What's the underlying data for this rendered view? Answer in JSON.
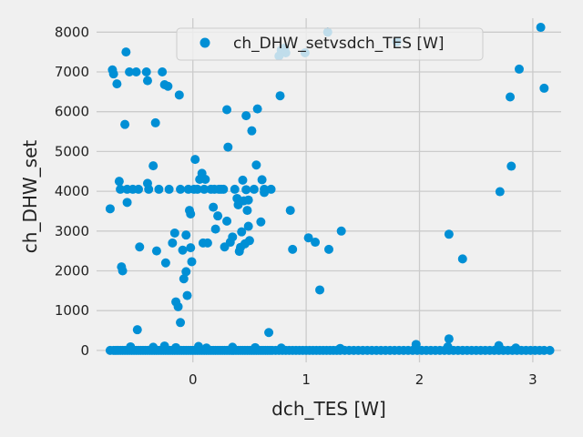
{
  "chart_data": {
    "type": "scatter",
    "title": "",
    "xlabel": "dch_TES [W]",
    "ylabel": "ch_DHW_set",
    "xlim": [
      -0.85,
      3.25
    ],
    "ylim": [
      -300,
      8350
    ],
    "xticks": [
      0,
      1,
      2,
      3
    ],
    "yticks": [
      0,
      1000,
      2000,
      3000,
      4000,
      5000,
      6000,
      7000,
      8000
    ],
    "grid": true,
    "legend_position": "top-center",
    "colors": {
      "series": "#008fd5",
      "background": "#f0f0f0",
      "grid": "#cbcbcb",
      "text": "#222222"
    },
    "series": [
      {
        "name": "ch_DHW_setvsdch_TES [W]",
        "points": [
          [
            -0.73,
            3560
          ],
          [
            -0.71,
            7050
          ],
          [
            -0.7,
            6950
          ],
          [
            -0.67,
            6700
          ],
          [
            -0.65,
            4250
          ],
          [
            -0.64,
            4050
          ],
          [
            -0.63,
            2100
          ],
          [
            -0.62,
            2000
          ],
          [
            -0.6,
            5680
          ],
          [
            -0.59,
            7500
          ],
          [
            -0.58,
            3720
          ],
          [
            -0.58,
            4050
          ],
          [
            -0.56,
            7000
          ],
          [
            -0.53,
            4050
          ],
          [
            -0.5,
            7000
          ],
          [
            -0.48,
            4050
          ],
          [
            -0.49,
            520
          ],
          [
            -0.47,
            2600
          ],
          [
            -0.41,
            7000
          ],
          [
            -0.4,
            4200
          ],
          [
            -0.4,
            6780
          ],
          [
            -0.39,
            4050
          ],
          [
            -0.35,
            4640
          ],
          [
            -0.33,
            5720
          ],
          [
            -0.32,
            2500
          ],
          [
            -0.3,
            4050
          ],
          [
            -0.27,
            7000
          ],
          [
            -0.25,
            6680
          ],
          [
            -0.24,
            2200
          ],
          [
            -0.22,
            6640
          ],
          [
            -0.21,
            4050
          ],
          [
            -0.18,
            2700
          ],
          [
            -0.16,
            2950
          ],
          [
            -0.15,
            1220
          ],
          [
            -0.13,
            1100
          ],
          [
            -0.12,
            6420
          ],
          [
            -0.11,
            4050
          ],
          [
            -0.11,
            700
          ],
          [
            -0.09,
            2520
          ],
          [
            -0.08,
            1800
          ],
          [
            -0.06,
            2900
          ],
          [
            -0.06,
            1980
          ],
          [
            -0.05,
            1380
          ],
          [
            -0.04,
            4050
          ],
          [
            -0.03,
            3520
          ],
          [
            -0.02,
            3430
          ],
          [
            -0.02,
            2580
          ],
          [
            -0.01,
            2230
          ],
          [
            0.01,
            4050
          ],
          [
            0.02,
            4800
          ],
          [
            0.04,
            4050
          ],
          [
            0.06,
            4300
          ],
          [
            0.08,
            4450
          ],
          [
            0.1,
            4050
          ],
          [
            0.09,
            2700
          ],
          [
            0.11,
            4300
          ],
          [
            0.13,
            2700
          ],
          [
            0.16,
            4050
          ],
          [
            0.18,
            3600
          ],
          [
            0.19,
            4050
          ],
          [
            0.2,
            3050
          ],
          [
            0.22,
            3380
          ],
          [
            0.23,
            4050
          ],
          [
            0.25,
            4050
          ],
          [
            0.27,
            4050
          ],
          [
            0.28,
            2600
          ],
          [
            0.3,
            3250
          ],
          [
            0.3,
            6050
          ],
          [
            0.31,
            5110
          ],
          [
            0.33,
            2720
          ],
          [
            0.35,
            2850
          ],
          [
            0.37,
            4050
          ],
          [
            0.39,
            3820
          ],
          [
            0.4,
            3660
          ],
          [
            0.41,
            2490
          ],
          [
            0.42,
            2590
          ],
          [
            0.43,
            2980
          ],
          [
            0.44,
            4280
          ],
          [
            0.45,
            3760
          ],
          [
            0.46,
            2680
          ],
          [
            0.48,
            3520
          ],
          [
            0.47,
            4040
          ],
          [
            0.47,
            5900
          ],
          [
            0.49,
            3780
          ],
          [
            0.49,
            3120
          ],
          [
            0.5,
            2760
          ],
          [
            0.52,
            5520
          ],
          [
            0.54,
            4050
          ],
          [
            0.56,
            4660
          ],
          [
            0.57,
            6070
          ],
          [
            0.6,
            3230
          ],
          [
            0.61,
            4290
          ],
          [
            0.63,
            3970
          ],
          [
            0.63,
            4050
          ],
          [
            0.67,
            450
          ],
          [
            0.69,
            4050
          ],
          [
            0.76,
            7400
          ],
          [
            0.77,
            6400
          ],
          [
            0.78,
            7550
          ],
          [
            0.81,
            7600
          ],
          [
            0.82,
            7480
          ],
          [
            0.86,
            3520
          ],
          [
            0.88,
            2540
          ],
          [
            0.99,
            7480
          ],
          [
            1.02,
            2830
          ],
          [
            1.08,
            2720
          ],
          [
            1.12,
            1520
          ],
          [
            1.19,
            8000
          ],
          [
            1.2,
            2540
          ],
          [
            1.31,
            3000
          ],
          [
            1.8,
            7760
          ],
          [
            2.26,
            2920
          ],
          [
            2.26,
            290
          ],
          [
            2.38,
            2300
          ],
          [
            2.71,
            3990
          ],
          [
            2.8,
            6370
          ],
          [
            2.81,
            4630
          ],
          [
            2.88,
            7070
          ],
          [
            3.07,
            8120
          ],
          [
            3.1,
            6590
          ],
          [
            -0.73,
            0
          ],
          [
            -0.7,
            0
          ],
          [
            -0.68,
            0
          ],
          [
            -0.66,
            0
          ],
          [
            -0.64,
            0
          ],
          [
            -0.62,
            0
          ],
          [
            -0.6,
            0
          ],
          [
            -0.58,
            0
          ],
          [
            -0.56,
            0
          ],
          [
            -0.54,
            0
          ],
          [
            -0.52,
            0
          ],
          [
            -0.5,
            0
          ],
          [
            -0.48,
            0
          ],
          [
            -0.46,
            0
          ],
          [
            -0.44,
            0
          ],
          [
            -0.42,
            0
          ],
          [
            -0.4,
            0
          ],
          [
            -0.38,
            0
          ],
          [
            -0.36,
            0
          ],
          [
            -0.34,
            0
          ],
          [
            -0.32,
            0
          ],
          [
            -0.3,
            0
          ],
          [
            -0.28,
            0
          ],
          [
            -0.26,
            0
          ],
          [
            -0.24,
            0
          ],
          [
            -0.22,
            0
          ],
          [
            -0.2,
            0
          ],
          [
            -0.18,
            0
          ],
          [
            -0.16,
            0
          ],
          [
            -0.14,
            0
          ],
          [
            -0.12,
            0
          ],
          [
            -0.1,
            0
          ],
          [
            -0.08,
            0
          ],
          [
            -0.06,
            0
          ],
          [
            -0.04,
            0
          ],
          [
            -0.02,
            0
          ],
          [
            0.0,
            0
          ],
          [
            0.02,
            0
          ],
          [
            0.04,
            0
          ],
          [
            0.06,
            0
          ],
          [
            0.08,
            0
          ],
          [
            0.1,
            0
          ],
          [
            0.12,
            0
          ],
          [
            0.14,
            0
          ],
          [
            0.16,
            0
          ],
          [
            0.18,
            0
          ],
          [
            0.2,
            0
          ],
          [
            0.22,
            0
          ],
          [
            0.24,
            0
          ],
          [
            0.26,
            0
          ],
          [
            0.28,
            0
          ],
          [
            0.3,
            0
          ],
          [
            0.32,
            0
          ],
          [
            0.34,
            0
          ],
          [
            0.36,
            0
          ],
          [
            0.38,
            0
          ],
          [
            0.4,
            0
          ],
          [
            0.42,
            0
          ],
          [
            0.44,
            0
          ],
          [
            0.46,
            0
          ],
          [
            0.48,
            0
          ],
          [
            0.5,
            0
          ],
          [
            0.52,
            0
          ],
          [
            0.54,
            0
          ],
          [
            0.56,
            0
          ],
          [
            0.58,
            0
          ],
          [
            0.6,
            0
          ],
          [
            0.62,
            0
          ],
          [
            0.64,
            0
          ],
          [
            0.66,
            0
          ],
          [
            0.68,
            0
          ],
          [
            0.7,
            0
          ],
          [
            0.73,
            0
          ],
          [
            0.76,
            0
          ],
          [
            0.79,
            0
          ],
          [
            0.82,
            0
          ],
          [
            0.85,
            0
          ],
          [
            0.88,
            0
          ],
          [
            0.91,
            0
          ],
          [
            0.94,
            0
          ],
          [
            0.97,
            0
          ],
          [
            1.0,
            0
          ],
          [
            1.03,
            0
          ],
          [
            1.06,
            0
          ],
          [
            1.09,
            0
          ],
          [
            1.12,
            0
          ],
          [
            1.15,
            0
          ],
          [
            1.18,
            0
          ],
          [
            1.21,
            0
          ],
          [
            1.24,
            0
          ],
          [
            1.27,
            0
          ],
          [
            1.3,
            0
          ],
          [
            1.34,
            0
          ],
          [
            1.38,
            0
          ],
          [
            1.42,
            0
          ],
          [
            1.46,
            0
          ],
          [
            1.5,
            0
          ],
          [
            1.54,
            0
          ],
          [
            1.58,
            0
          ],
          [
            1.62,
            0
          ],
          [
            1.66,
            0
          ],
          [
            1.7,
            0
          ],
          [
            1.74,
            0
          ],
          [
            1.78,
            0
          ],
          [
            1.82,
            0
          ],
          [
            1.86,
            0
          ],
          [
            1.9,
            0
          ],
          [
            1.94,
            0
          ],
          [
            1.98,
            0
          ],
          [
            2.02,
            0
          ],
          [
            2.06,
            0
          ],
          [
            2.1,
            0
          ],
          [
            2.14,
            0
          ],
          [
            2.18,
            0
          ],
          [
            2.22,
            0
          ],
          [
            2.26,
            0
          ],
          [
            2.3,
            0
          ],
          [
            2.34,
            0
          ],
          [
            2.38,
            0
          ],
          [
            2.42,
            0
          ],
          [
            2.46,
            0
          ],
          [
            2.5,
            0
          ],
          [
            2.54,
            0
          ],
          [
            2.58,
            0
          ],
          [
            2.62,
            0
          ],
          [
            2.66,
            0
          ],
          [
            2.7,
            0
          ],
          [
            2.74,
            0
          ],
          [
            2.78,
            0
          ],
          [
            2.82,
            0
          ],
          [
            2.86,
            0
          ],
          [
            2.9,
            0
          ],
          [
            2.94,
            0
          ],
          [
            2.98,
            0
          ],
          [
            3.02,
            0
          ],
          [
            3.06,
            0
          ],
          [
            3.1,
            0
          ],
          [
            3.15,
            0
          ],
          [
            -0.55,
            90
          ],
          [
            -0.35,
            80
          ],
          [
            -0.25,
            110
          ],
          [
            -0.15,
            70
          ],
          [
            0.05,
            100
          ],
          [
            0.12,
            60
          ],
          [
            0.35,
            80
          ],
          [
            0.55,
            70
          ],
          [
            0.78,
            60
          ],
          [
            1.3,
            50
          ],
          [
            1.97,
            150
          ],
          [
            2.25,
            90
          ],
          [
            2.7,
            120
          ],
          [
            2.85,
            60
          ]
        ]
      }
    ]
  }
}
